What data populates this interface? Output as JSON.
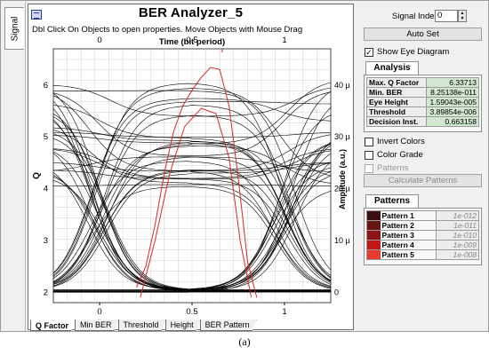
{
  "side_tab": {
    "label": "Signal"
  },
  "window": {
    "title": "BER Analyzer_5",
    "hint": "Dbl Click On Objects to open properties.  Move Objects with Mouse Drag"
  },
  "bottom_tabs": [
    "Q Factor",
    "Min BER",
    "Threshold",
    "Height",
    "BER Pattern"
  ],
  "controls": {
    "signal_index_label": "Signal Index:",
    "signal_index_value": "0",
    "auto_set": "Auto Set",
    "show_eye": "Show Eye Diagram",
    "invert_colors": "Invert Colors",
    "color_grade": "Color Grade",
    "patterns_chk": "Patterns",
    "calc_patterns": "Calculate Patterns"
  },
  "analysis": {
    "title": "Analysis",
    "rows": [
      {
        "k": "Max. Q Factor",
        "v": "6.33713"
      },
      {
        "k": "Min. BER",
        "v": "8.25138e-011"
      },
      {
        "k": "Eye Height",
        "v": "1.59043e-005"
      },
      {
        "k": "Threshold",
        "v": "3.89854e-006"
      },
      {
        "k": "Decision Inst.",
        "v": "0.663158"
      }
    ]
  },
  "patterns": {
    "title": "Patterns",
    "rows": [
      {
        "k": "Pattern 1",
        "v": "1e-012",
        "color": "#3b0f0f"
      },
      {
        "k": "Pattern 2",
        "v": "1e-011",
        "color": "#661414"
      },
      {
        "k": "Pattern 3",
        "v": "1e-010",
        "color": "#8e1414"
      },
      {
        "k": "Pattern 4",
        "v": "1e-009",
        "color": "#c01616"
      },
      {
        "k": "Pattern 5",
        "v": "1e-008",
        "color": "#e63b2f"
      }
    ]
  },
  "caption": "(a)",
  "chart_data": {
    "type": "line",
    "title": "",
    "xlabel_bottom": "",
    "xlabel_top": "Time (bit period)",
    "ylabel_left": "Q",
    "ylabel_right": "Amplitude (a.u.)",
    "xlim": [
      -0.25,
      1.25
    ],
    "xticks": [
      "0",
      "0.5",
      "1"
    ],
    "ylim_left": [
      1.8,
      6.7
    ],
    "yticks_left": [
      "2",
      "3",
      "4",
      "5",
      "6"
    ],
    "ylim_right": [
      -2e-06,
      4.7e-05
    ],
    "yticks_right": [
      "0",
      "10 µ",
      "20 µ",
      "30 µ",
      "40 µ"
    ],
    "grid": true,
    "colors": {
      "trace": "#000000",
      "q_curve": "#d42b2b"
    },
    "q_factor_curve": {
      "x": [
        0.2,
        0.25,
        0.3,
        0.35,
        0.4,
        0.45,
        0.5,
        0.55,
        0.6,
        0.65,
        0.7,
        0.75,
        0.8,
        0.85
      ],
      "y": [
        2.1,
        2.5,
        3.3,
        4.3,
        5.1,
        5.6,
        5.9,
        6.15,
        6.34,
        6.3,
        5.6,
        4.2,
        2.6,
        1.9
      ]
    },
    "threshold_curve": {
      "x": [
        0.22,
        0.3,
        0.38,
        0.46,
        0.55,
        0.63,
        0.7,
        0.76,
        0.82
      ],
      "y": [
        1.9,
        3.0,
        4.3,
        5.2,
        5.55,
        5.45,
        4.6,
        3.0,
        1.9
      ]
    },
    "eye_envelope": {
      "level0": {
        "x": [
          -0.25,
          1.25
        ],
        "y": [
          0,
          0.5
        ]
      },
      "level1_range": [
        20,
        42
      ],
      "cross_points": [
        0.0,
        1.0
      ],
      "trace_count": 60
    }
  }
}
